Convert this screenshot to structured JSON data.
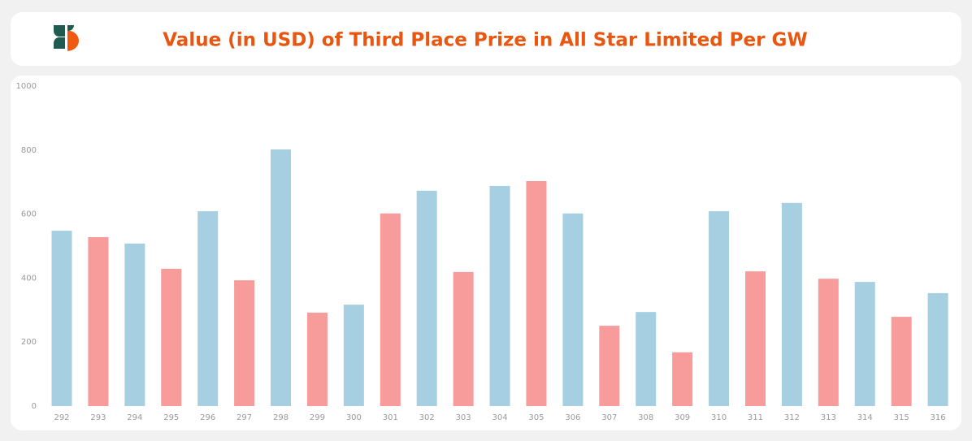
{
  "chart_data": {
    "type": "bar",
    "title": "Value (in USD) of Third Place Prize in All Star Limited Per GW",
    "categories": [
      "292",
      "293",
      "294",
      "295",
      "296",
      "297",
      "298",
      "299",
      "300",
      "301",
      "302",
      "303",
      "304",
      "305",
      "306",
      "307",
      "308",
      "309",
      "310",
      "311",
      "312",
      "313",
      "314",
      "315",
      "316"
    ],
    "values": [
      548,
      528,
      508,
      429,
      609,
      393,
      802,
      292,
      317,
      602,
      673,
      419,
      688,
      703,
      602,
      251,
      294,
      168,
      609,
      421,
      635,
      398,
      388,
      279,
      353
    ],
    "colors": [
      "#a7cfe2",
      "#f79b9b",
      "#a7cfe2",
      "#f79b9b",
      "#a7cfe2",
      "#f79b9b",
      "#a7cfe2",
      "#f79b9b",
      "#a7cfe2",
      "#f79b9b",
      "#a7cfe2",
      "#f79b9b",
      "#a7cfe2",
      "#f79b9b",
      "#a7cfe2",
      "#f79b9b",
      "#a7cfe2",
      "#f79b9b",
      "#a7cfe2",
      "#f79b9b",
      "#a7cfe2",
      "#f79b9b",
      "#a7cfe2",
      "#f79b9b",
      "#a7cfe2"
    ],
    "ylim": [
      0,
      1000
    ],
    "yticks": [
      0,
      200,
      400,
      600,
      800,
      1000
    ],
    "grid": false
  }
}
